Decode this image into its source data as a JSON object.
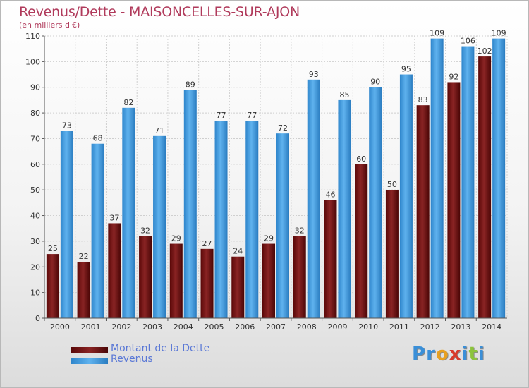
{
  "header": {
    "title": "Revenus/Dette - MAISONCELLES-SUR-AJON",
    "subtitle": "(en milliers d'€)"
  },
  "logo": {
    "text": "Proxiti",
    "letters": [
      {
        "ch": "P",
        "color": "#3a8fd8"
      },
      {
        "ch": "r",
        "color": "#3a8fd8"
      },
      {
        "ch": "o",
        "color": "#e8a020"
      },
      {
        "ch": "x",
        "color": "#d83a2a"
      },
      {
        "ch": "i",
        "color": "#3a8fd8"
      },
      {
        "ch": "t",
        "color": "#8cc43a"
      },
      {
        "ch": "i",
        "color": "#3a8fd8"
      }
    ]
  },
  "chart_data": {
    "type": "bar",
    "categories": [
      "2000",
      "2001",
      "2002",
      "2003",
      "2004",
      "2005",
      "2006",
      "2007",
      "2008",
      "2009",
      "2010",
      "2011",
      "2012",
      "2013",
      "2014"
    ],
    "series": [
      {
        "name": "Montant de la Dette",
        "color": "#7a1010",
        "values": [
          25,
          22,
          37,
          32,
          29,
          27,
          24,
          29,
          32,
          46,
          60,
          50,
          83,
          92,
          102
        ]
      },
      {
        "name": "Revenus",
        "color": "#3d9be0",
        "values": [
          73,
          68,
          82,
          71,
          89,
          77,
          77,
          72,
          93,
          85,
          90,
          95,
          109,
          106,
          109
        ]
      }
    ],
    "ylim": [
      0,
      110
    ],
    "yticks": [
      0,
      10,
      20,
      30,
      40,
      50,
      60,
      70,
      80,
      90,
      100,
      110
    ],
    "grid": true,
    "legend": "bottom-left"
  }
}
